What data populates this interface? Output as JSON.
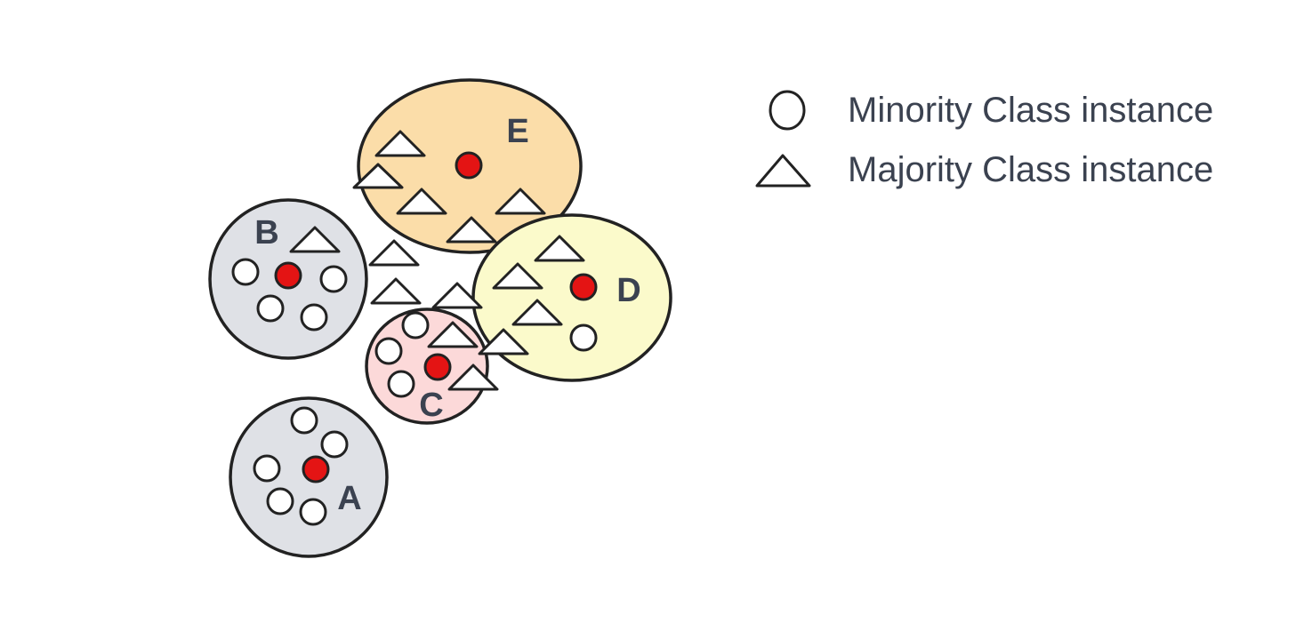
{
  "legend": {
    "minority_label": "Minority Class instance",
    "majority_label": "Majority Class instance",
    "minority_icon": "circle-icon",
    "majority_icon": "triangle-icon"
  },
  "regions": [
    {
      "id": "A",
      "label": "A",
      "fill": "#dfe1e6"
    },
    {
      "id": "B",
      "label": "B",
      "fill": "#dfe1e6"
    },
    {
      "id": "C",
      "label": "C",
      "fill": "#fcd9d9"
    },
    {
      "id": "D",
      "label": "D",
      "fill": "#fbfacb"
    },
    {
      "id": "E",
      "label": "E",
      "fill": "#fbdda9"
    }
  ],
  "colors": {
    "center_point": "#e41414",
    "instance_fill": "#ffffff",
    "outline": "#222222",
    "text": "#3b4250"
  }
}
